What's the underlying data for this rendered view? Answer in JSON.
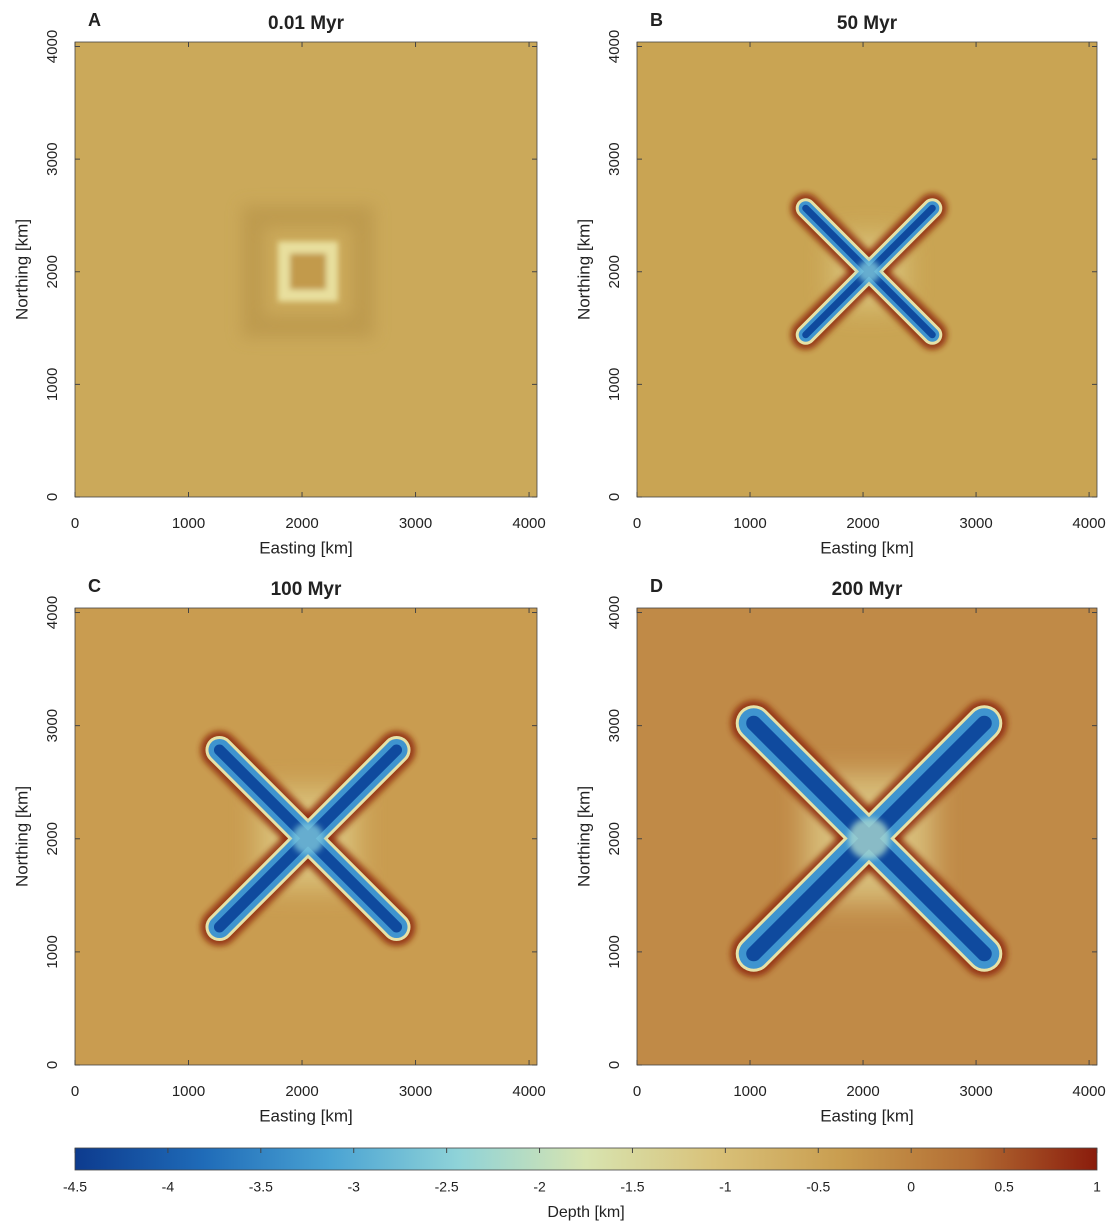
{
  "chart_data": [
    {
      "type": "heatmap",
      "panel_label": "A",
      "title": "0.01 Myr",
      "x_label": "Easting [km]",
      "y_label": "Northing [km]",
      "xlim": [
        0,
        4070
      ],
      "ylim": [
        0,
        4040
      ],
      "xticks": [
        0,
        1000,
        2000,
        3000,
        4000
      ],
      "yticks": [
        0,
        1000,
        2000,
        3000,
        4000
      ]
    },
    {
      "type": "heatmap",
      "panel_label": "B",
      "title": "50 Myr",
      "x_label": "Easting [km]",
      "y_label": "Northing [km]",
      "xlim": [
        0,
        4070
      ],
      "ylim": [
        0,
        4040
      ],
      "xticks": [
        0,
        1000,
        2000,
        3000,
        4000
      ],
      "yticks": [
        0,
        1000,
        2000,
        3000,
        4000
      ]
    },
    {
      "type": "heatmap",
      "panel_label": "C",
      "title": "100 Myr",
      "x_label": "Easting [km]",
      "y_label": "Northing [km]",
      "xlim": [
        0,
        4070
      ],
      "ylim": [
        0,
        4040
      ],
      "xticks": [
        0,
        1000,
        2000,
        3000,
        4000
      ],
      "yticks": [
        0,
        1000,
        2000,
        3000,
        4000
      ]
    },
    {
      "type": "heatmap",
      "panel_label": "D",
      "title": "200 Myr",
      "x_label": "Easting [km]",
      "y_label": "Northing [km]",
      "xlim": [
        0,
        4070
      ],
      "ylim": [
        0,
        4040
      ],
      "xticks": [
        0,
        1000,
        2000,
        3000,
        4000
      ],
      "yticks": [
        0,
        1000,
        2000,
        3000,
        4000
      ]
    }
  ],
  "colorbar": {
    "label": "Depth [km]",
    "clim": [
      -4.5,
      1
    ],
    "ticks": [
      -4.5,
      -4,
      -3.5,
      -3,
      -2.5,
      -2,
      -1.5,
      -1,
      -0.5,
      0,
      0.5,
      1
    ],
    "colormap": [
      "#0d3b8e",
      "#1f6bb8",
      "#4aa3d3",
      "#8fd3d8",
      "#d8e4b0",
      "#d9c27a",
      "#c99d4f",
      "#b36d33",
      "#8a1c0c"
    ]
  }
}
